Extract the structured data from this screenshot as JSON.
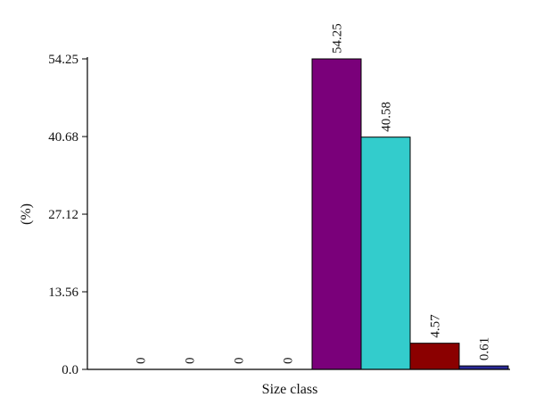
{
  "chart_data": {
    "type": "bar",
    "categories": [
      "",
      "",
      "",
      "",
      "",
      "",
      "",
      ""
    ],
    "values": [
      0,
      0,
      0,
      0,
      54.25,
      40.58,
      4.57,
      0.61
    ],
    "data_labels": [
      "0",
      "0",
      "0",
      "0",
      "54.25",
      "40.58",
      "4.57",
      "0.61"
    ],
    "bar_colors": [
      "#7a007a",
      "#7a007a",
      "#7a007a",
      "#7a007a",
      "#7a007a",
      "#33cccc",
      "#8b0000",
      "#2b2b99"
    ],
    "title": "",
    "xlabel": "Size class",
    "ylabel": "(%)",
    "yticks": [
      0.0,
      13.56,
      27.12,
      40.68,
      54.25
    ],
    "ytick_labels": [
      "0.0",
      "13.56",
      "27.12",
      "40.68",
      "54.25"
    ],
    "ylim": [
      0,
      54.25
    ],
    "grid": false,
    "legend": "none"
  }
}
